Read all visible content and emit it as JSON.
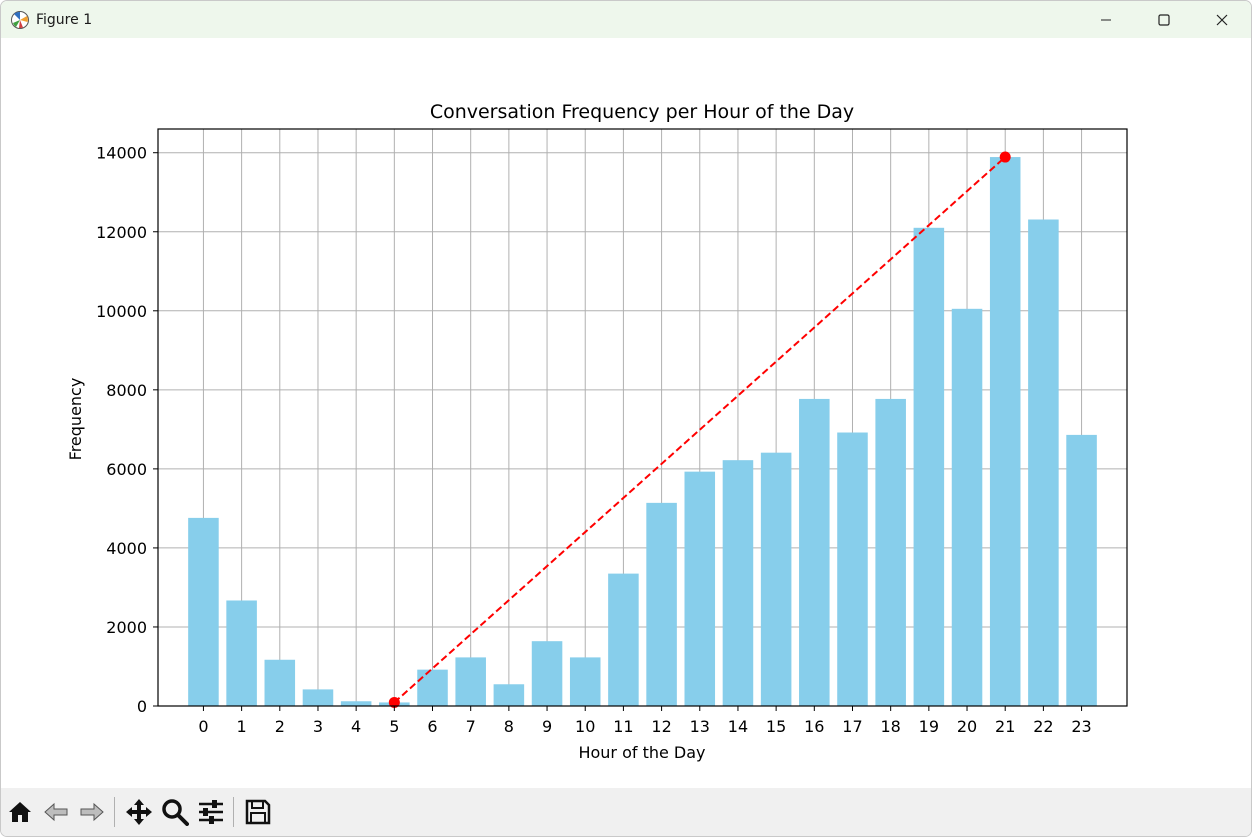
{
  "window": {
    "title": "Figure 1"
  },
  "toolbar": {
    "buttons": [
      {
        "name": "home",
        "icon": "home-icon"
      },
      {
        "name": "back",
        "icon": "back-arrow-icon"
      },
      {
        "name": "forward",
        "icon": "forward-arrow-icon"
      },
      {
        "name": "pan",
        "icon": "move-icon"
      },
      {
        "name": "zoom",
        "icon": "search-icon"
      },
      {
        "name": "configure",
        "icon": "sliders-icon"
      },
      {
        "name": "save",
        "icon": "floppy-disk-icon"
      }
    ]
  },
  "chart_data": {
    "type": "bar",
    "title": "Conversation Frequency per Hour of the Day",
    "xlabel": "Hour of the Day",
    "ylabel": "Frequency",
    "categories": [
      "0",
      "1",
      "2",
      "3",
      "4",
      "5",
      "6",
      "7",
      "8",
      "9",
      "10",
      "11",
      "12",
      "13",
      "14",
      "15",
      "16",
      "17",
      "18",
      "19",
      "20",
      "21",
      "22",
      "23"
    ],
    "values": [
      4760,
      2670,
      1170,
      420,
      120,
      90,
      920,
      1230,
      550,
      1640,
      1230,
      3350,
      5140,
      5930,
      6220,
      6410,
      7770,
      6920,
      7770,
      12100,
      10050,
      13890,
      12310,
      6860
    ],
    "ylim": [
      0,
      14600
    ],
    "yticks": [
      0,
      2000,
      4000,
      6000,
      8000,
      10000,
      12000,
      14000
    ],
    "grid": true,
    "bar_color": "#87ceeb",
    "overlay_line": {
      "style": "dashed",
      "color": "#ff0000",
      "points": [
        {
          "x": "5",
          "y": 90
        },
        {
          "x": "21",
          "y": 13890
        }
      ]
    }
  }
}
